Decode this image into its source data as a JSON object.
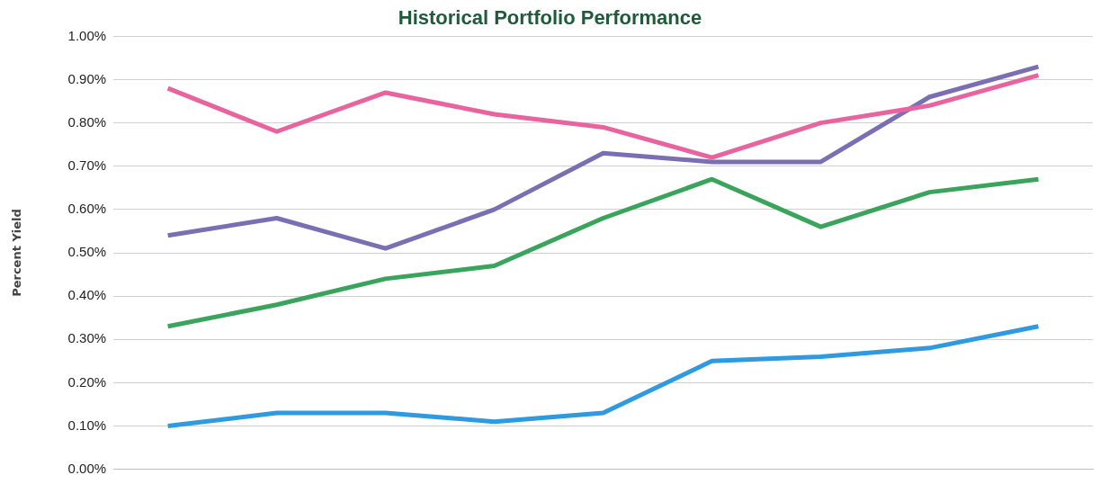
{
  "chart_data": {
    "type": "line",
    "title": "Historical Portfolio Performance",
    "ylabel": "Percent Yield",
    "categories": [
      null,
      null,
      null,
      null,
      null,
      null,
      null,
      null,
      null
    ],
    "series": [
      {
        "color": "#e8649e",
        "values": [
          0.88,
          0.78,
          0.87,
          0.82,
          0.79,
          0.72,
          0.8,
          0.84,
          0.91
        ]
      },
      {
        "color": "#7b6fb4",
        "values": [
          0.54,
          0.58,
          0.51,
          0.6,
          0.73,
          0.71,
          0.71,
          0.86,
          0.93
        ]
      },
      {
        "color": "#3aa35c",
        "values": [
          0.33,
          0.38,
          0.44,
          0.47,
          0.58,
          0.67,
          0.56,
          0.64,
          0.67
        ]
      },
      {
        "color": "#2f9ae0",
        "values": [
          0.1,
          0.13,
          0.13,
          0.11,
          0.13,
          0.25,
          0.26,
          0.28,
          0.33
        ]
      }
    ],
    "ylim": [
      0,
      1
    ],
    "yticks": [
      {
        "value": 0,
        "label": "0.00%"
      },
      {
        "value": 0.1,
        "label": "0.10%"
      },
      {
        "value": 0.2,
        "label": "0.20%"
      },
      {
        "value": 0.3,
        "label": "0.30%"
      },
      {
        "value": 0.4,
        "label": "0.40%"
      },
      {
        "value": 0.5,
        "label": "0.50%"
      },
      {
        "value": 0.6,
        "label": "0.60%"
      },
      {
        "value": 0.7,
        "label": "0.70%"
      },
      {
        "value": 0.8,
        "label": "0.80%"
      },
      {
        "value": 0.9,
        "label": "0.90%"
      },
      {
        "value": 1,
        "label": "1.00%"
      }
    ],
    "grid": "y",
    "legend": false,
    "marker": "none",
    "line_style": "solid"
  }
}
